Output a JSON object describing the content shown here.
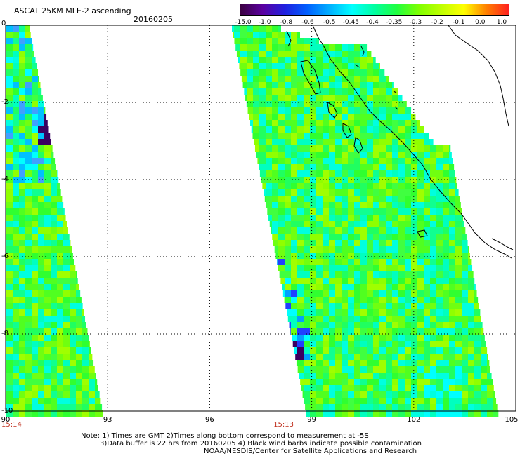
{
  "title": "ASCAT 25KM MLE-2 ascending",
  "date": "20160205",
  "colorbar": {
    "labels": [
      "-15.0",
      "-1.0",
      "-0.8",
      "-0.6",
      "-0.5",
      "-0.45",
      "-0.4",
      "-0.35",
      "-0.3",
      "-0.2",
      "-0.1",
      "0.0",
      "1.0"
    ],
    "colors": [
      "#3a0040",
      "#5a00a0",
      "#2020e0",
      "#0060ff",
      "#00b0ff",
      "#00ffff",
      "#00ffa0",
      "#20ff40",
      "#80ff00",
      "#c0ff00",
      "#ffff00",
      "#ff8000",
      "#ff2020"
    ]
  },
  "axes": {
    "y_labels": [
      "0",
      "-2",
      "-4",
      "-6",
      "-8",
      "-10"
    ],
    "y_values": [
      0,
      -2,
      -4,
      -6,
      -8,
      -10
    ],
    "x_labels": [
      "90",
      "93",
      "96",
      "99",
      "102",
      "105"
    ],
    "x_values": [
      90,
      93,
      96,
      99,
      102,
      105
    ],
    "lon_range": [
      90,
      105
    ],
    "lat_range": [
      -10,
      0
    ]
  },
  "swath_times": [
    {
      "label": "15:14",
      "lon": 90
    },
    {
      "label": "15:13",
      "lon": 98
    }
  ],
  "notes": [
    "Note: 1) Times are GMT 2)Times along bottom correspond to measurement at -5S",
    "3)Data buffer is 22 hrs from 20160205 4) Black wind barbs indicate possible contamination",
    "NOAA/NESDIS/Center for Satellite Applications and Research"
  ]
}
